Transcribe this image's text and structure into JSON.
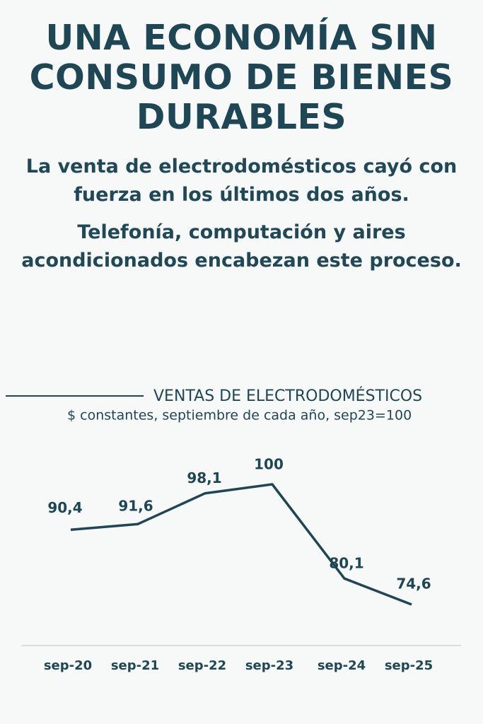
{
  "header": {
    "title": "UNA ECONOMÍA SIN CONSUMO DE BIENES DURABLES",
    "paragraphs": [
      "La venta de electrodomésticos cayó con fuerza en los últimos dos años.",
      "Telefonía, computación y aires acondicionados encabezan este proceso."
    ]
  },
  "chart_data": {
    "type": "line",
    "title": "VENTAS DE ELECTRODOMÉSTICOS",
    "subtitle": "$ constantes, septiembre de cada año, sep23=100",
    "categories": [
      "sep-20",
      "sep-21",
      "sep-22",
      "sep-23",
      "sep-24",
      "sep-25"
    ],
    "values": [
      90.4,
      91.6,
      98.1,
      100,
      80.1,
      74.6
    ],
    "value_labels": [
      "90,4",
      "91,6",
      "98,1",
      "100",
      "80,1",
      "74,6"
    ],
    "color": "#1f4654"
  }
}
